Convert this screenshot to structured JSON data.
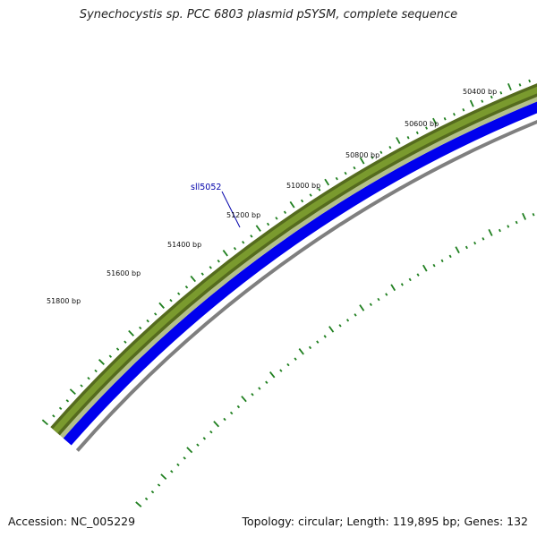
{
  "title": "Synechocystis sp. PCC 6803 plasmid pSYSM, complete sequence",
  "footer": {
    "accession": "Accession: NC_005229",
    "summary": "Topology: circular; Length: 119,895 bp; Genes: 132"
  },
  "map": {
    "ticks": [
      {
        "label": "50400 bp"
      },
      {
        "label": "50600 bp"
      },
      {
        "label": "50800 bp"
      },
      {
        "label": "51000 bp"
      },
      {
        "label": "51200 bp"
      },
      {
        "label": "51400 bp"
      },
      {
        "label": "51600 bp"
      },
      {
        "label": "51800 bp"
      }
    ],
    "gene_label": "sll5052",
    "colors": {
      "outer_ring": "#556b1e",
      "outer_ring_fill": "#7a9a2e",
      "outer_ring_light": "#b3c08a",
      "gene_ring": "#0000ee",
      "inner_ring": "#7f7f7f",
      "ticks": "#1f7f1f",
      "gene_label": "#0000aa"
    }
  }
}
